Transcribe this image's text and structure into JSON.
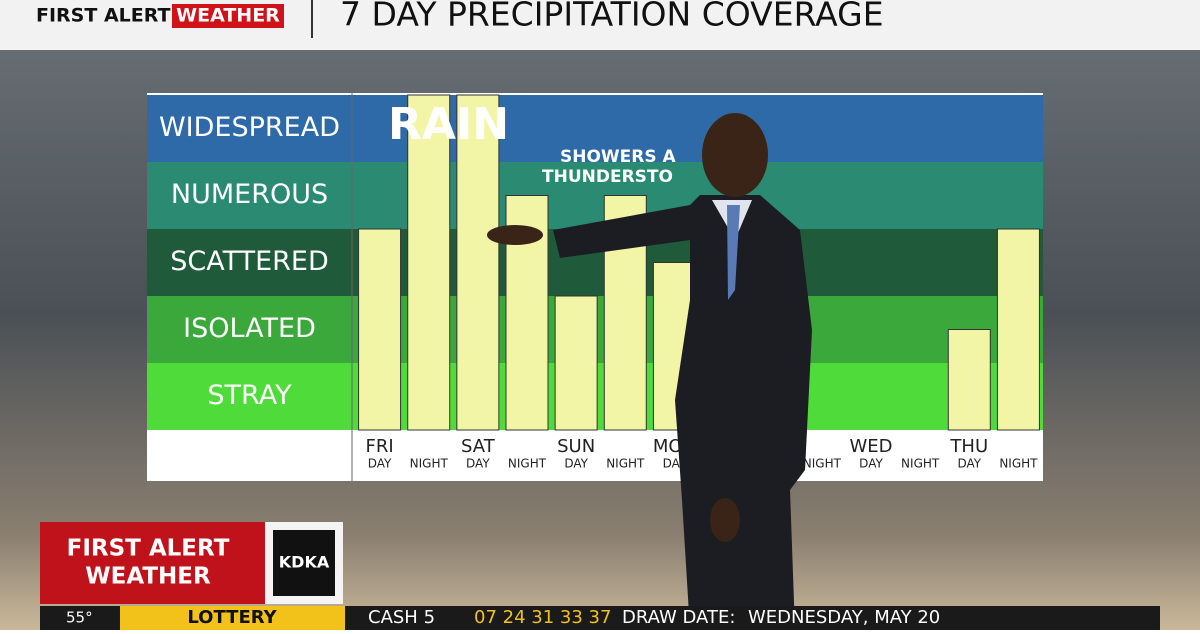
{
  "header": {
    "brand_left": "FIRST ALERT",
    "brand_right": "WEATHER",
    "title": "7 DAY PRECIPITATION COVERAGE"
  },
  "chart_data": {
    "type": "bar",
    "days": [
      "FRI",
      "SAT",
      "SUN",
      "MON",
      null,
      "WED",
      "THU"
    ],
    "categories": [
      "DAY",
      "NIGHT",
      "DAY",
      "NIGHT",
      "DAY",
      "NIGHT",
      "DAY",
      null,
      null,
      "NIGHT",
      "DAY",
      "NIGHT",
      "DAY",
      "NIGHT"
    ],
    "values": [
      3,
      5,
      5,
      3.5,
      2,
      3.5,
      2.5,
      null,
      null,
      null,
      0,
      0,
      1.5,
      3
    ],
    "color": "#f2f4a6",
    "ylim": [
      0,
      5
    ],
    "yticks": [
      {
        "value": 0.5,
        "label": "STRAY"
      },
      {
        "value": 1.5,
        "label": "ISOLATED"
      },
      {
        "value": 2.5,
        "label": "SCATTERED"
      },
      {
        "value": 3.5,
        "label": "NUMEROUS"
      },
      {
        "value": 4.5,
        "label": "WIDESPREAD"
      }
    ],
    "band_colors": [
      "#4fdc3a",
      "#3aa83a",
      "#1f5a3a",
      "#2a8a72",
      "#2f6aa8"
    ],
    "annotations": [
      "RAIN",
      "SHOWERS A",
      "THUNDERSTO"
    ]
  },
  "bug": {
    "line1": "FIRST ALERT",
    "line2": "WEATHER",
    "station": "KDKA"
  },
  "ticker": {
    "temp": "55°",
    "label": "LOTTERY",
    "game": "CASH 5",
    "numbers": "07 24 31 33 37",
    "draw_label": "DRAW DATE:",
    "draw_date": "WEDNESDAY, MAY 20"
  }
}
